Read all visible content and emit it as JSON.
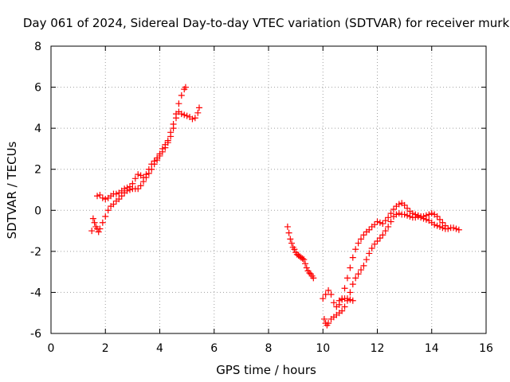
{
  "chart_data": {
    "type": "scatter",
    "title": "Day 061 of 2024, Sidereal Day-to-day VTEC variation (SDTVAR) for receiver murk",
    "xlabel": "GPS time / hours",
    "ylabel": "SDTVAR / TECUs",
    "xlim": [
      0,
      16
    ],
    "ylim": [
      -6,
      8
    ],
    "xticks": [
      0,
      2,
      4,
      6,
      8,
      10,
      12,
      14,
      16
    ],
    "yticks": [
      -6,
      -4,
      -2,
      0,
      2,
      4,
      6,
      8
    ],
    "grid": true,
    "marker": "+",
    "color": "#ff0000",
    "series": [
      {
        "values": [
          [
            1.5,
            -1.0
          ],
          [
            1.55,
            -0.4
          ],
          [
            1.6,
            -0.6
          ],
          [
            1.65,
            -0.8
          ],
          [
            1.7,
            -0.9
          ],
          [
            1.75,
            -1.05
          ],
          [
            1.7,
            0.7
          ],
          [
            1.8,
            0.75
          ],
          [
            1.9,
            0.6
          ],
          [
            2.0,
            0.55
          ],
          [
            2.1,
            0.6
          ],
          [
            2.2,
            0.7
          ],
          [
            2.3,
            0.8
          ],
          [
            2.4,
            0.8
          ],
          [
            2.5,
            0.85
          ],
          [
            2.6,
            0.95
          ],
          [
            2.7,
            1.05
          ],
          [
            2.8,
            1.1
          ],
          [
            2.9,
            1.15
          ],
          [
            3.0,
            1.3
          ],
          [
            3.1,
            1.55
          ],
          [
            3.2,
            1.75
          ],
          [
            3.3,
            1.7
          ],
          [
            3.4,
            1.6
          ],
          [
            3.5,
            1.75
          ],
          [
            3.6,
            2.0
          ],
          [
            3.7,
            2.25
          ],
          [
            3.8,
            2.4
          ],
          [
            3.9,
            2.55
          ],
          [
            4.0,
            2.75
          ],
          [
            4.1,
            3.0
          ],
          [
            4.2,
            3.2
          ],
          [
            4.3,
            3.4
          ],
          [
            4.4,
            3.8
          ],
          [
            4.5,
            4.2
          ],
          [
            4.6,
            4.7
          ],
          [
            4.7,
            5.2
          ],
          [
            4.8,
            5.6
          ],
          [
            4.9,
            5.9
          ],
          [
            4.95,
            6.0
          ],
          [
            1.8,
            -0.9
          ],
          [
            1.9,
            -0.6
          ],
          [
            2.0,
            -0.3
          ],
          [
            2.1,
            0.0
          ],
          [
            2.2,
            0.2
          ],
          [
            2.3,
            0.3
          ],
          [
            2.4,
            0.45
          ],
          [
            2.5,
            0.55
          ],
          [
            2.6,
            0.7
          ],
          [
            2.7,
            0.85
          ],
          [
            2.8,
            0.95
          ],
          [
            2.9,
            1.0
          ],
          [
            3.0,
            1.05
          ],
          [
            3.1,
            1.05
          ],
          [
            3.2,
            1.05
          ],
          [
            3.3,
            1.2
          ],
          [
            3.4,
            1.4
          ],
          [
            3.5,
            1.6
          ],
          [
            3.6,
            1.8
          ],
          [
            3.7,
            2.0
          ],
          [
            3.8,
            2.25
          ],
          [
            3.9,
            2.45
          ],
          [
            4.0,
            2.65
          ],
          [
            4.1,
            2.85
          ],
          [
            4.2,
            3.05
          ],
          [
            4.3,
            3.3
          ],
          [
            4.4,
            3.6
          ],
          [
            4.5,
            4.0
          ],
          [
            4.6,
            4.5
          ],
          [
            4.7,
            4.8
          ],
          [
            4.8,
            4.7
          ],
          [
            4.9,
            4.65
          ],
          [
            5.0,
            4.6
          ],
          [
            5.1,
            4.55
          ],
          [
            5.2,
            4.45
          ],
          [
            5.3,
            4.5
          ],
          [
            5.4,
            4.75
          ],
          [
            5.45,
            5.0
          ],
          [
            8.7,
            -0.8
          ],
          [
            8.75,
            -1.1
          ],
          [
            8.8,
            -1.4
          ],
          [
            8.85,
            -1.6
          ],
          [
            8.9,
            -1.8
          ],
          [
            8.95,
            -1.9
          ],
          [
            9.0,
            -2.05
          ],
          [
            9.05,
            -2.15
          ],
          [
            9.1,
            -2.2
          ],
          [
            9.15,
            -2.25
          ],
          [
            9.2,
            -2.3
          ],
          [
            9.25,
            -2.35
          ],
          [
            9.3,
            -2.4
          ],
          [
            9.35,
            -2.6
          ],
          [
            9.4,
            -2.8
          ],
          [
            9.45,
            -2.95
          ],
          [
            9.5,
            -3.05
          ],
          [
            9.55,
            -3.1
          ],
          [
            9.6,
            -3.2
          ],
          [
            9.65,
            -3.3
          ],
          [
            10.05,
            -5.3
          ],
          [
            10.1,
            -5.5
          ],
          [
            10.15,
            -5.6
          ],
          [
            10.2,
            -5.5
          ],
          [
            10.3,
            -5.3
          ],
          [
            10.4,
            -5.2
          ],
          [
            10.5,
            -5.1
          ],
          [
            10.6,
            -5.0
          ],
          [
            10.7,
            -4.9
          ],
          [
            10.8,
            -4.7
          ],
          [
            10.9,
            -4.4
          ],
          [
            11.0,
            -4.0
          ],
          [
            11.1,
            -3.6
          ],
          [
            11.2,
            -3.3
          ],
          [
            11.3,
            -3.1
          ],
          [
            11.4,
            -2.9
          ],
          [
            11.5,
            -2.7
          ],
          [
            11.6,
            -2.4
          ],
          [
            11.7,
            -2.1
          ],
          [
            11.8,
            -1.85
          ],
          [
            11.9,
            -1.65
          ],
          [
            12.0,
            -1.5
          ],
          [
            12.1,
            -1.35
          ],
          [
            12.2,
            -1.2
          ],
          [
            12.3,
            -1.0
          ],
          [
            12.4,
            -0.8
          ],
          [
            12.5,
            -0.55
          ],
          [
            12.6,
            -0.3
          ],
          [
            12.7,
            -0.2
          ],
          [
            12.8,
            -0.15
          ],
          [
            12.9,
            -0.2
          ],
          [
            13.0,
            -0.2
          ],
          [
            13.1,
            -0.25
          ],
          [
            13.2,
            -0.3
          ],
          [
            13.3,
            -0.35
          ],
          [
            13.4,
            -0.35
          ],
          [
            13.5,
            -0.3
          ],
          [
            13.6,
            -0.35
          ],
          [
            13.7,
            -0.4
          ],
          [
            13.8,
            -0.45
          ],
          [
            13.9,
            -0.5
          ],
          [
            14.0,
            -0.6
          ],
          [
            14.1,
            -0.7
          ],
          [
            14.2,
            -0.75
          ],
          [
            14.3,
            -0.8
          ],
          [
            14.4,
            -0.85
          ],
          [
            14.5,
            -0.9
          ],
          [
            14.6,
            -0.9
          ],
          [
            14.7,
            -0.85
          ],
          [
            14.8,
            -0.85
          ],
          [
            14.9,
            -0.9
          ],
          [
            15.0,
            -0.95
          ],
          [
            10.0,
            -4.3
          ],
          [
            10.1,
            -4.1
          ],
          [
            10.2,
            -3.9
          ],
          [
            10.3,
            -4.1
          ],
          [
            10.4,
            -4.5
          ],
          [
            10.5,
            -4.7
          ],
          [
            10.6,
            -4.6
          ],
          [
            10.7,
            -4.3
          ],
          [
            10.8,
            -3.8
          ],
          [
            10.9,
            -3.3
          ],
          [
            11.0,
            -2.8
          ],
          [
            11.1,
            -2.3
          ],
          [
            11.2,
            -1.9
          ],
          [
            11.3,
            -1.6
          ],
          [
            11.4,
            -1.4
          ],
          [
            11.5,
            -1.2
          ],
          [
            11.6,
            -1.05
          ],
          [
            11.7,
            -0.95
          ],
          [
            11.8,
            -0.8
          ],
          [
            11.9,
            -0.7
          ],
          [
            12.0,
            -0.55
          ],
          [
            12.1,
            -0.6
          ],
          [
            12.2,
            -0.65
          ],
          [
            12.3,
            -0.5
          ],
          [
            12.4,
            -0.35
          ],
          [
            12.5,
            -0.15
          ],
          [
            12.6,
            0.05
          ],
          [
            12.7,
            0.2
          ],
          [
            12.8,
            0.3
          ],
          [
            12.9,
            0.35
          ],
          [
            13.0,
            0.25
          ],
          [
            13.1,
            0.1
          ],
          [
            13.2,
            -0.05
          ],
          [
            13.3,
            -0.15
          ],
          [
            13.4,
            -0.2
          ],
          [
            13.5,
            -0.25
          ],
          [
            13.6,
            -0.3
          ],
          [
            13.7,
            -0.3
          ],
          [
            13.8,
            -0.25
          ],
          [
            13.9,
            -0.2
          ],
          [
            14.0,
            -0.15
          ],
          [
            14.1,
            -0.2
          ],
          [
            14.2,
            -0.3
          ],
          [
            14.3,
            -0.45
          ],
          [
            14.4,
            -0.6
          ],
          [
            14.5,
            -0.75
          ],
          [
            10.6,
            -4.4
          ],
          [
            10.7,
            -4.35
          ],
          [
            10.8,
            -4.3
          ],
          [
            10.9,
            -4.3
          ],
          [
            11.0,
            -4.35
          ],
          [
            11.1,
            -4.4
          ]
        ]
      }
    ]
  }
}
